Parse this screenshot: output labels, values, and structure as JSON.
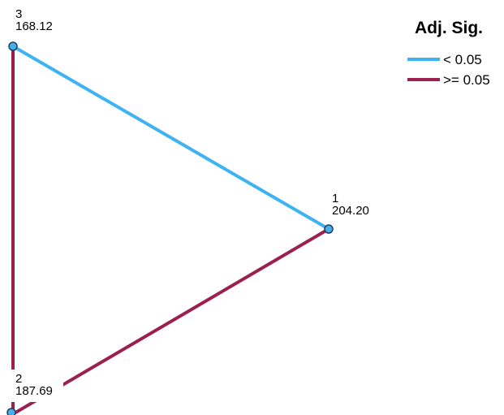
{
  "legend": {
    "title": "Adj. Sig.",
    "items": [
      {
        "label": "< 0.05",
        "color": "#3db3f2"
      },
      {
        "label": ">= 0.05",
        "color": "#9b1f4f"
      }
    ]
  },
  "nodes": [
    {
      "id": "1",
      "value": "204.20"
    },
    {
      "id": "2",
      "value": "187.69"
    },
    {
      "id": "3",
      "value": "168.12"
    }
  ],
  "edges": [
    {
      "from": "3",
      "to": "1",
      "category": "< 0.05"
    },
    {
      "from": "2",
      "to": "1",
      "category": ">= 0.05"
    },
    {
      "from": "3",
      "to": "2",
      "category": ">= 0.05"
    }
  ],
  "node_style": {
    "fill": "#45b0e6",
    "stroke": "#1f3f66"
  }
}
